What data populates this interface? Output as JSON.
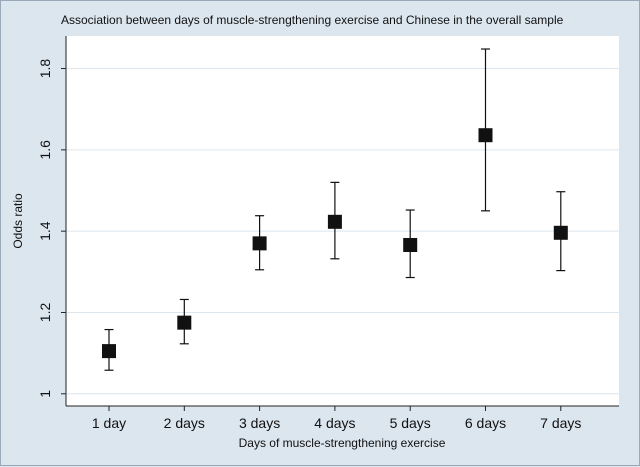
{
  "chart_data": {
    "type": "scatter",
    "title": "Association between days of muscle-strengthening exercise and Chinese in the overall sample",
    "xlabel": "Days of muscle-strengthening exercise",
    "ylabel": "Odds ratio",
    "categories": [
      "1 day",
      "2 days",
      "3 days",
      "4 days",
      "5 days",
      "6 days",
      "7 days"
    ],
    "points": [
      {
        "category": "1 day",
        "or": 1.105,
        "lower": 1.058,
        "upper": 1.158
      },
      {
        "category": "2 days",
        "or": 1.175,
        "lower": 1.123,
        "upper": 1.232
      },
      {
        "category": "3 days",
        "or": 1.37,
        "lower": 1.305,
        "upper": 1.438
      },
      {
        "category": "4 days",
        "or": 1.423,
        "lower": 1.332,
        "upper": 1.52
      },
      {
        "category": "5 days",
        "or": 1.366,
        "lower": 1.286,
        "upper": 1.452
      },
      {
        "category": "6 days",
        "or": 1.636,
        "lower": 1.45,
        "upper": 1.848
      },
      {
        "category": "7 days",
        "or": 1.396,
        "lower": 1.303,
        "upper": 1.497
      }
    ],
    "yticks": [
      1,
      1.2,
      1.4,
      1.6,
      1.8
    ],
    "ytick_labels": [
      "1",
      "1.2",
      "1.4",
      "1.6",
      "1.8"
    ],
    "ylim": [
      0.97,
      1.88
    ],
    "grid": true,
    "colors": {
      "marker": "#111111",
      "grid": "#dce6ef",
      "plot_bg": "#ffffff",
      "outer_bg": "#dce6ef"
    }
  }
}
